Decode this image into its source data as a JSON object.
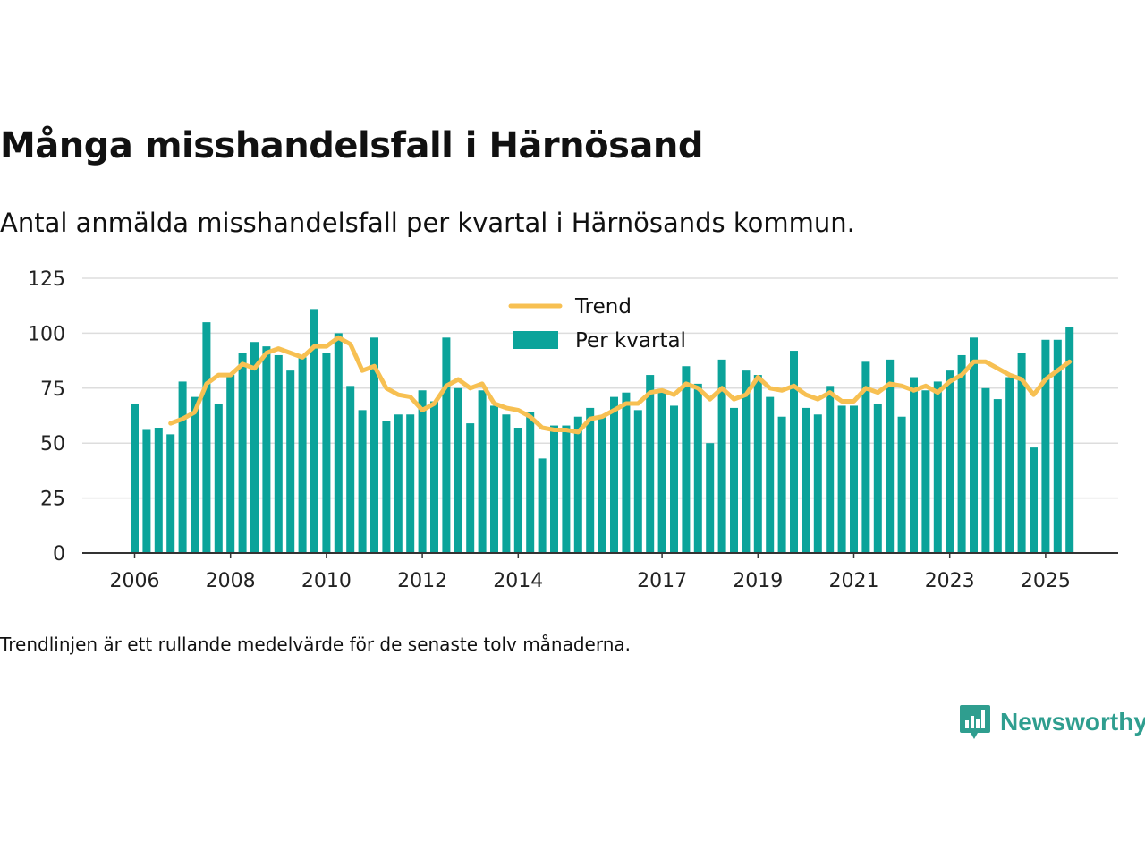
{
  "title": "Många misshandelsfall i Härnösand",
  "subtitle": "Antal anmälda misshandelsfall per kvartal i Härnösands kommun.",
  "note": "Trendlinjen är ett rullande medelvärde för de senaste tolv månaderna.",
  "brand": {
    "name": "Newsworthy",
    "color": "#2f9e8f"
  },
  "chart_data": {
    "type": "bar",
    "title": "Många misshandelsfall i Härnösand",
    "subtitle": "Antal anmälda misshandelsfall per kvartal i Härnösands kommun.",
    "xlabel": "",
    "ylabel": "",
    "ylim": [
      0,
      125
    ],
    "yticks": [
      0,
      25,
      50,
      75,
      100,
      125
    ],
    "grid": true,
    "legend": "top-center",
    "xticks": [
      {
        "label": "2006",
        "index": 0
      },
      {
        "label": "2008",
        "index": 8
      },
      {
        "label": "2010",
        "index": 16
      },
      {
        "label": "2012",
        "index": 24
      },
      {
        "label": "2014",
        "index": 32
      },
      {
        "label": "2017",
        "index": 44
      },
      {
        "label": "2019",
        "index": 52
      },
      {
        "label": "2021",
        "index": 60
      },
      {
        "label": "2023",
        "index": 68
      },
      {
        "label": "2025",
        "index": 76
      }
    ],
    "series": [
      {
        "name": "Per kvartal",
        "type": "bar",
        "color": "#0ba39a",
        "values": [
          68,
          56,
          57,
          54,
          78,
          71,
          105,
          68,
          81,
          91,
          96,
          94,
          90,
          83,
          89,
          111,
          91,
          100,
          76,
          65,
          98,
          60,
          63,
          63,
          74,
          69,
          98,
          75,
          59,
          74,
          67,
          63,
          57,
          64,
          43,
          58,
          58,
          62,
          66,
          62,
          71,
          73,
          65,
          81,
          73,
          67,
          85,
          77,
          50,
          88,
          66,
          83,
          81,
          71,
          62,
          92,
          66,
          63,
          76,
          67,
          67,
          87,
          68,
          88,
          62,
          80,
          74,
          78,
          83,
          90,
          98,
          75,
          70,
          80,
          91,
          48,
          97,
          97,
          103
        ]
      },
      {
        "name": "Trend",
        "type": "line",
        "color": "#f7c052",
        "start_index": 3,
        "values": [
          59,
          61,
          64,
          77,
          81,
          81,
          86,
          84,
          91,
          93,
          91,
          89,
          94,
          94,
          98,
          95,
          83,
          85,
          75,
          72,
          71,
          65,
          68,
          76,
          79,
          75,
          77,
          68,
          66,
          65,
          62,
          57,
          56,
          56,
          55,
          61,
          62,
          65,
          68,
          68,
          73,
          74,
          72,
          77,
          75,
          70,
          75,
          70,
          72,
          80,
          75,
          74,
          76,
          72,
          70,
          73,
          69,
          69,
          75,
          73,
          77,
          76,
          74,
          76,
          73,
          78,
          81,
          87,
          87,
          84,
          81,
          79,
          72,
          79,
          83,
          87
        ]
      }
    ]
  }
}
